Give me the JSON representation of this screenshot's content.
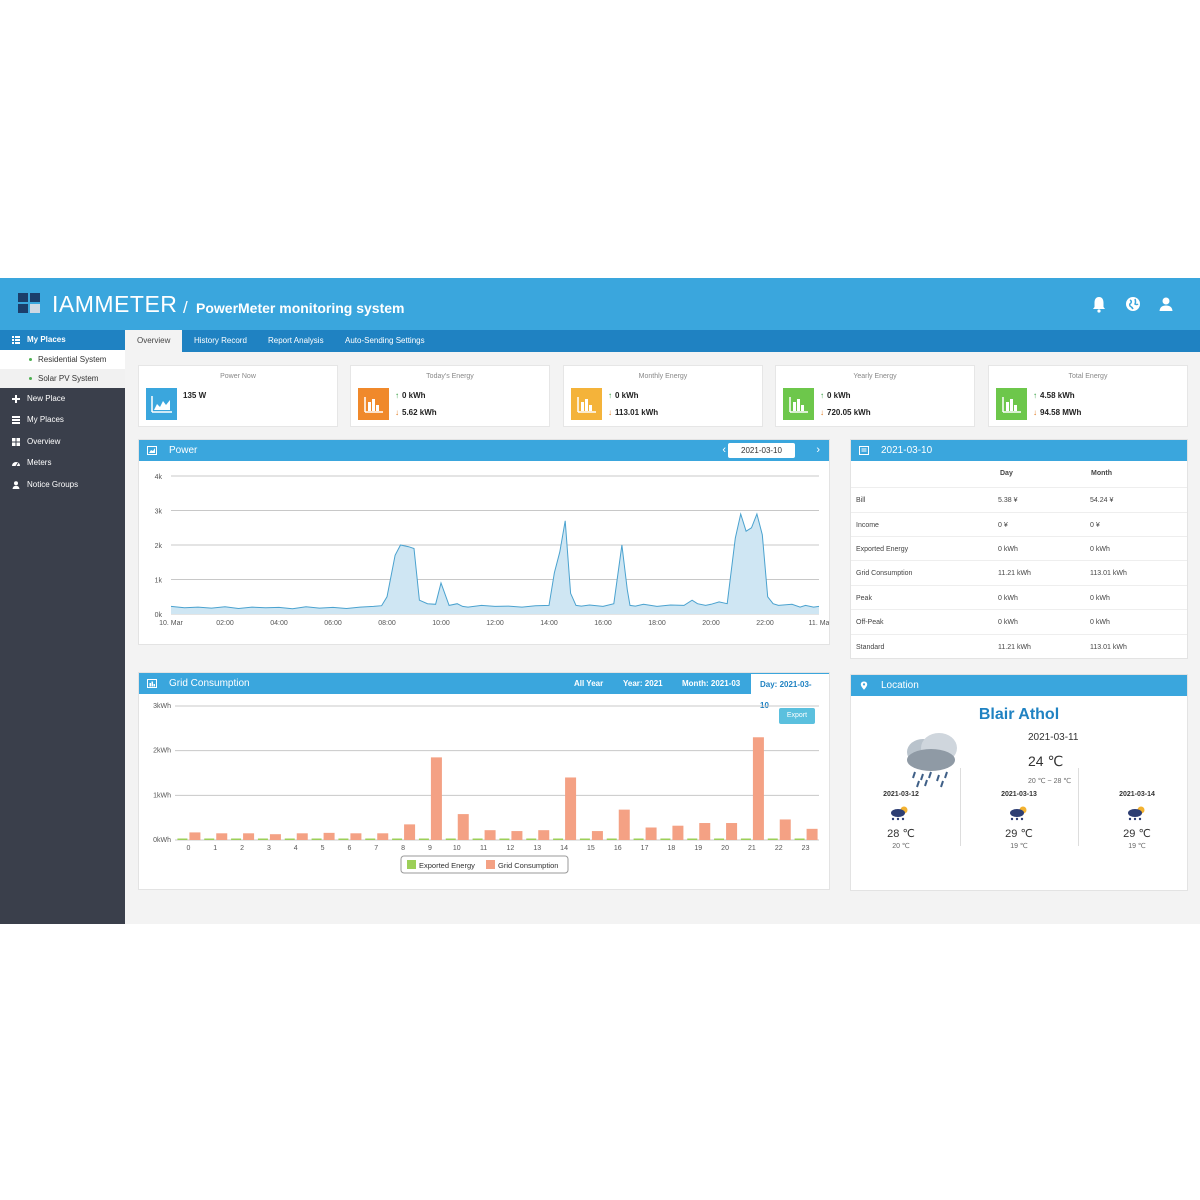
{
  "header": {
    "brand": "IAMMETER",
    "slash": "/",
    "subtitle": "PowerMeter monitoring system"
  },
  "tabs": [
    {
      "label": "Overview",
      "active": true
    },
    {
      "label": "History Record"
    },
    {
      "label": "Report Analysis"
    },
    {
      "label": "Auto-Sending Settings"
    }
  ],
  "sidebar": {
    "my_places": "My Places",
    "places": [
      "Residential System",
      "Solar PV System"
    ],
    "items": [
      "New Place",
      "My Places",
      "Overview",
      "Meters",
      "Notice Groups"
    ]
  },
  "cards": [
    {
      "title": "Power Now",
      "v1": "135 W",
      "color": "#3aa6dd"
    },
    {
      "title": "Today's Energy",
      "v1": "0 kWh",
      "v2": "5.62 kWh",
      "color": "#f0892b"
    },
    {
      "title": "Monthly Energy",
      "v1": "0 kWh",
      "v2": "113.01 kWh",
      "color": "#f4b33a"
    },
    {
      "title": "Yearly Energy",
      "v1": "0 kWh",
      "v2": "720.05 kWh",
      "color": "#6dc74b"
    },
    {
      "title": "Total Energy",
      "v1": "4.58 kWh",
      "v2": "94.58 MWh",
      "color": "#6dc74b"
    }
  ],
  "power_panel": {
    "title": "Power",
    "date": "2021-03-10"
  },
  "grid_panel": {
    "title": "Grid Consumption",
    "ranges": [
      "All Year",
      "Year: 2021",
      "Month: 2021-03",
      "Day: 2021-03-10"
    ],
    "export": "Export"
  },
  "stats_panel": {
    "title": "2021-03-10",
    "col_day": "Day",
    "col_month": "Month",
    "rows": [
      {
        "label": "Bill",
        "day": "5.38 ¥",
        "month": "54.24 ¥"
      },
      {
        "label": "Income",
        "day": "0 ¥",
        "month": "0 ¥"
      },
      {
        "label": "Exported Energy",
        "day": "0 kWh",
        "month": "0 kWh"
      },
      {
        "label": "Grid Consumption",
        "day": "11.21 kWh",
        "month": "113.01 kWh"
      },
      {
        "label": "Peak",
        "day": "0 kWh",
        "month": "0 kWh"
      },
      {
        "label": "Off-Peak",
        "day": "0 kWh",
        "month": "0 kWh"
      },
      {
        "label": "Standard",
        "day": "11.21 kWh",
        "month": "113.01 kWh"
      }
    ]
  },
  "location_panel": {
    "title": "Location",
    "place": "Blair Athol",
    "today": {
      "date": "2021-03-11",
      "temp": "24 ℃",
      "range": "20 ℃ ~ 28 ℃",
      "icon": "storm-cloud-icon"
    },
    "forecast": [
      {
        "date": "2021-03-12",
        "temp": "28 ℃",
        "low": "20 ℃",
        "icon": "partly-cloudy-rain-icon"
      },
      {
        "date": "2021-03-13",
        "temp": "29 ℃",
        "low": "19 ℃",
        "icon": "partly-cloudy-rain-icon"
      },
      {
        "date": "2021-03-14",
        "temp": "29 ℃",
        "low": "19 ℃",
        "icon": "partly-cloudy-rain-icon"
      }
    ]
  },
  "colors": {
    "primary": "#3aa6dd",
    "nav": "#1f82c2",
    "sidebar": "#3a3f4b",
    "bar": "#f4a184",
    "exported": "#9ccf58",
    "line": "#4aa2cf"
  },
  "chart_data": [
    {
      "type": "area",
      "title": "Power",
      "xlabel": "",
      "ylabel": "",
      "x_tick_labels": [
        "10. Mar",
        "02:00",
        "04:00",
        "06:00",
        "08:00",
        "10:00",
        "12:00",
        "14:00",
        "16:00",
        "18:00",
        "20:00",
        "22:00",
        "11. Ma"
      ],
      "y_tick_labels": [
        "0k",
        "1k",
        "2k",
        "3k",
        "4k"
      ],
      "ylim": [
        0,
        4000
      ],
      "x_hours": [
        0,
        0.5,
        1,
        1.5,
        2,
        2.5,
        3,
        3.5,
        4,
        4.5,
        5,
        5.5,
        6,
        6.5,
        7,
        7.5,
        7.8,
        8,
        8.3,
        8.5,
        8.8,
        9,
        9.2,
        9.5,
        9.8,
        10,
        10.3,
        10.6,
        10.8,
        11,
        11.5,
        12,
        12.5,
        13,
        13.5,
        14,
        14.2,
        14.4,
        14.6,
        14.8,
        15,
        15.2,
        15.5,
        16,
        16.4,
        16.7,
        16.9,
        17,
        17.2,
        17.5,
        18,
        18.5,
        19,
        19.3,
        19.5,
        19.8,
        20,
        20.3,
        20.6,
        20.9,
        21.1,
        21.3,
        21.5,
        21.7,
        21.9,
        22.1,
        22.3,
        22.5,
        23,
        23.3,
        23.5,
        23.8,
        24
      ],
      "values": [
        220,
        180,
        200,
        170,
        210,
        160,
        200,
        180,
        190,
        150,
        210,
        170,
        190,
        160,
        200,
        220,
        240,
        500,
        1700,
        2000,
        1950,
        1900,
        400,
        300,
        280,
        900,
        250,
        300,
        220,
        200,
        250,
        220,
        230,
        200,
        240,
        250,
        1200,
        1800,
        2700,
        600,
        250,
        230,
        260,
        220,
        300,
        2000,
        700,
        250,
        230,
        280,
        220,
        260,
        250,
        400,
        300,
        250,
        280,
        350,
        300,
        2200,
        2900,
        2400,
        2500,
        2900,
        2300,
        500,
        300,
        250,
        280,
        200,
        250,
        200,
        220
      ],
      "series": [
        {
          "name": ""
        }
      ]
    },
    {
      "type": "bar",
      "title": "Grid Consumption",
      "categories": [
        "0",
        "1",
        "2",
        "3",
        "4",
        "5",
        "6",
        "7",
        "8",
        "9",
        "10",
        "11",
        "12",
        "13",
        "14",
        "15",
        "16",
        "17",
        "18",
        "19",
        "20",
        "21",
        "22",
        "23"
      ],
      "y_tick_labels": [
        "0kWh",
        "1kWh",
        "2kWh",
        "3kWh"
      ],
      "ylim": [
        0,
        3
      ],
      "legend_position": "bottom",
      "series": [
        {
          "name": "Exported Energy",
          "values": [
            0,
            0,
            0,
            0,
            0,
            0,
            0,
            0,
            0,
            0,
            0,
            0,
            0,
            0,
            0,
            0,
            0,
            0,
            0,
            0,
            0,
            0,
            0,
            0
          ]
        },
        {
          "name": "Grid Consumption",
          "values": [
            0.17,
            0.15,
            0.15,
            0.13,
            0.15,
            0.16,
            0.15,
            0.15,
            0.35,
            1.85,
            0.58,
            0.22,
            0.2,
            0.22,
            1.4,
            0.2,
            0.68,
            0.28,
            0.32,
            0.38,
            0.38,
            2.3,
            0.46,
            0.25
          ]
        }
      ]
    }
  ]
}
